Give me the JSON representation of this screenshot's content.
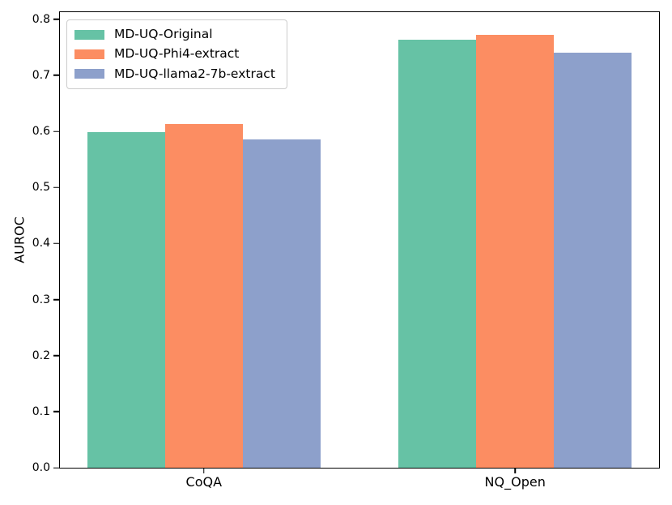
{
  "chart_data": {
    "type": "bar",
    "title": "",
    "xlabel": "",
    "ylabel": "AUROC",
    "categories": [
      "CoQA",
      "NQ_Open"
    ],
    "series": [
      {
        "name": "MD-UQ-Original",
        "color": "#66c2a5",
        "values": [
          0.598,
          0.764
        ]
      },
      {
        "name": "MD-UQ-Phi4-extract",
        "color": "#fc8d62",
        "values": [
          0.613,
          0.772
        ]
      },
      {
        "name": "MD-UQ-llama2-7b-extract",
        "color": "#8da0cb",
        "values": [
          0.585,
          0.74
        ]
      }
    ],
    "ylim": [
      0,
      0.8125
    ],
    "yticks": [
      0.0,
      0.1,
      0.2,
      0.3,
      0.4,
      0.5,
      0.6,
      0.7,
      0.8
    ],
    "ytick_decimals": 1,
    "grid": false,
    "legend_position": "upper-left",
    "layout": {
      "xlim": [
        -0.4625,
        1.4625
      ],
      "bar_width": 0.25,
      "offsets": [
        -0.25,
        0,
        0.25
      ]
    }
  }
}
